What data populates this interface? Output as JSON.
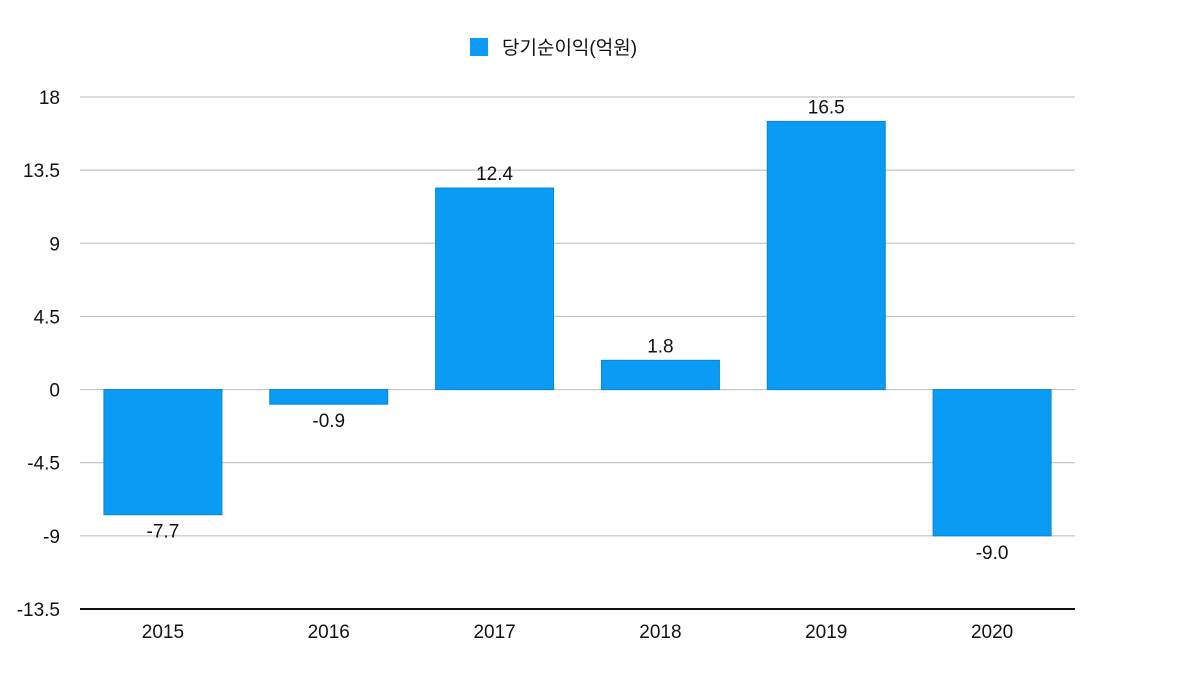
{
  "chart_data": {
    "type": "bar",
    "categories": [
      "2015",
      "2016",
      "2017",
      "2018",
      "2019",
      "2020"
    ],
    "series": [
      {
        "name": "당기순이익(억원)",
        "values": [
          -7.7,
          -0.9,
          12.4,
          1.8,
          16.5,
          -9.0
        ],
        "labels": [
          "-7.7",
          "-0.9",
          "12.4",
          "1.8",
          "16.5",
          "-9.0"
        ],
        "color": "#0a9cf5"
      }
    ],
    "y_ticks": [
      18,
      13.5,
      9,
      4.5,
      0,
      -4.5,
      -9,
      -13.5
    ],
    "y_tick_labels": [
      "18",
      "13.5",
      "9",
      "4.5",
      "0",
      "-4.5",
      "-9",
      "-13.5"
    ],
    "ylim": [
      -13.5,
      18
    ],
    "grid": true,
    "legend_position": "top-center",
    "title": "",
    "xlabel": "",
    "ylabel": ""
  }
}
